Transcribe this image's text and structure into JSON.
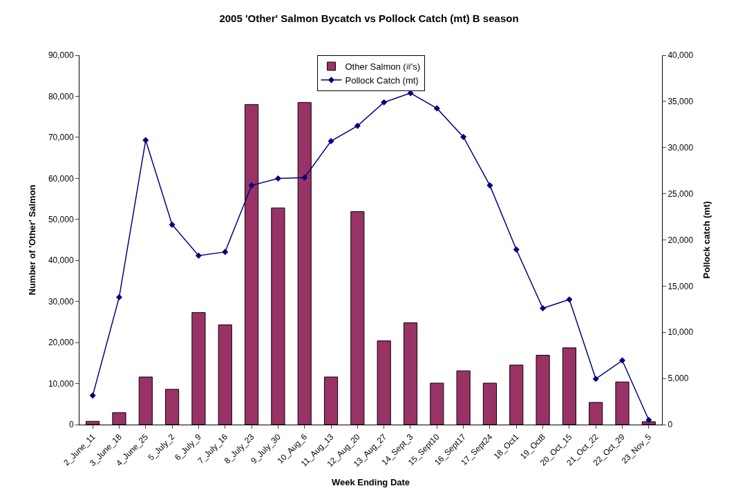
{
  "chart_data": {
    "type": "bar",
    "title": "2005 'Other' Salmon Bycatch vs Pollock Catch (mt) B season",
    "xlabel": "Week Ending Date",
    "ylabel": "Number of 'Other' Salmon",
    "y2label": "Pollock catch (mt)",
    "categories": [
      "2_June_11",
      "3_June_18",
      "4_June_25",
      "5_July_2",
      "6_July_9",
      "7_July_16",
      "8_July_23",
      "9_July_30",
      "10_Aug_6",
      "11_Aug_13",
      "12_Aug_20",
      "13_Aug_27",
      "14_Sept_3",
      "15_Sept10",
      "16_Sept17",
      "17_Sept24",
      "18_Oct1",
      "19_Oct8",
      "20_Oct_15",
      "21_Oct_22",
      "22_Oct_29",
      "23_Nov_5"
    ],
    "series": [
      {
        "name": "Other Salmon (#'s)",
        "color": "#993366",
        "values": [
          800,
          2900,
          11600,
          8600,
          27300,
          24300,
          78000,
          52800,
          78500,
          11600,
          51900,
          20400,
          24800,
          10100,
          13100,
          10100,
          14500,
          16900,
          18700,
          5400,
          10400,
          700
        ]
      },
      {
        "name": "Pollock Catch (mt)",
        "type": "line",
        "axis": "y2",
        "color": "#000080",
        "marker": "diamond",
        "values": [
          3150,
          13800,
          30800,
          21650,
          18300,
          18700,
          25900,
          26650,
          26750,
          30700,
          32350,
          34900,
          35900,
          34250,
          31150,
          25900,
          18950,
          12600,
          13550,
          4950,
          6950,
          500
        ]
      }
    ],
    "ylim": [
      0,
      90000
    ],
    "yticks": [
      {
        "value": 0,
        "label": "0"
      },
      {
        "value": 10000,
        "label": "10,000"
      },
      {
        "value": 20000,
        "label": "20,000"
      },
      {
        "value": 30000,
        "label": "30,000"
      },
      {
        "value": 40000,
        "label": "40,000"
      },
      {
        "value": 50000,
        "label": "50,000"
      },
      {
        "value": 60000,
        "label": "60,000"
      },
      {
        "value": 70000,
        "label": "70,000"
      },
      {
        "value": 80000,
        "label": "80,000"
      },
      {
        "value": 90000,
        "label": "90,000"
      }
    ],
    "y2lim": [
      0,
      40000
    ],
    "y2ticks": [
      {
        "value": 0,
        "label": "0"
      },
      {
        "value": 5000,
        "label": "5,000"
      },
      {
        "value": 10000,
        "label": "10,000"
      },
      {
        "value": 15000,
        "label": "15,000"
      },
      {
        "value": 20000,
        "label": "20,000"
      },
      {
        "value": 25000,
        "label": "25,000"
      },
      {
        "value": 30000,
        "label": "30,000"
      },
      {
        "value": 35000,
        "label": "35,000"
      },
      {
        "value": 40000,
        "label": "40,000"
      }
    ],
    "legend": "top"
  }
}
